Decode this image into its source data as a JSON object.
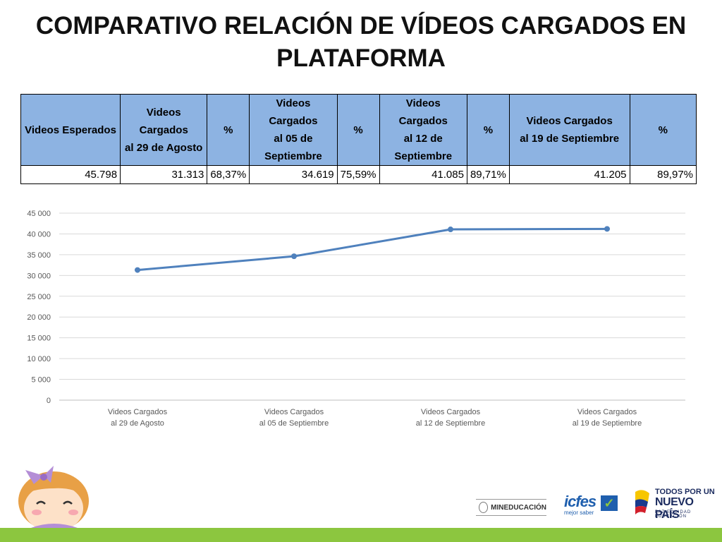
{
  "slide": {
    "title_line1": "COMPARATIVO RELACIÓN DE VÍDEOS CARGADOS EN",
    "title_line2": "PLATAFORMA"
  },
  "table": {
    "headers": [
      [
        "Videos Esperados"
      ],
      [
        "Videos Cargados",
        "al 29 de Agosto"
      ],
      [
        "%"
      ],
      [
        "Videos Cargados",
        "al 05 de",
        "Septiembre"
      ],
      [
        "%"
      ],
      [
        "Videos Cargados",
        "al 12 de",
        "Septiembre"
      ],
      [
        "%"
      ],
      [
        "Videos Cargados",
        "al 19 de Septiembre"
      ],
      [
        "%"
      ]
    ],
    "row": [
      "45.798",
      "31.313",
      "68,37%",
      "34.619",
      "75,59%",
      "41.085",
      "89,71%",
      "41.205",
      "89,97%"
    ]
  },
  "chart_data": {
    "type": "line",
    "categories": [
      [
        "Videos Cargados",
        "al 29 de Agosto"
      ],
      [
        "Videos Cargados",
        "al 05 de Septiembre"
      ],
      [
        "Videos Cargados",
        "al 12 de Septiembre"
      ],
      [
        "Videos Cargados",
        "al 19 de Septiembre"
      ]
    ],
    "values": [
      31313,
      34619,
      41085,
      41205
    ],
    "ylim": [
      0,
      45000
    ],
    "yticks": [
      0,
      5000,
      10000,
      15000,
      20000,
      25000,
      30000,
      35000,
      40000,
      45000
    ],
    "ytick_labels": [
      "0",
      "5 000",
      "10 000",
      "15 000",
      "20 000",
      "25 000",
      "30 000",
      "35 000",
      "40 000",
      "45 000"
    ],
    "grid": true,
    "legend": "none",
    "line_color": "#4f81bd"
  },
  "footer": {
    "bar_color": "#8cc63f",
    "logos": {
      "mineducacion": "MINEDUCACIÓN",
      "icfes_name": "icfes",
      "icfes_sub": "mejor saber",
      "todos_line1": "TODOS POR UN",
      "todos_line2": "NUEVO PAÍS",
      "todos_line3": "PAZ  EQUIDAD  EDUCACIÓN"
    }
  }
}
